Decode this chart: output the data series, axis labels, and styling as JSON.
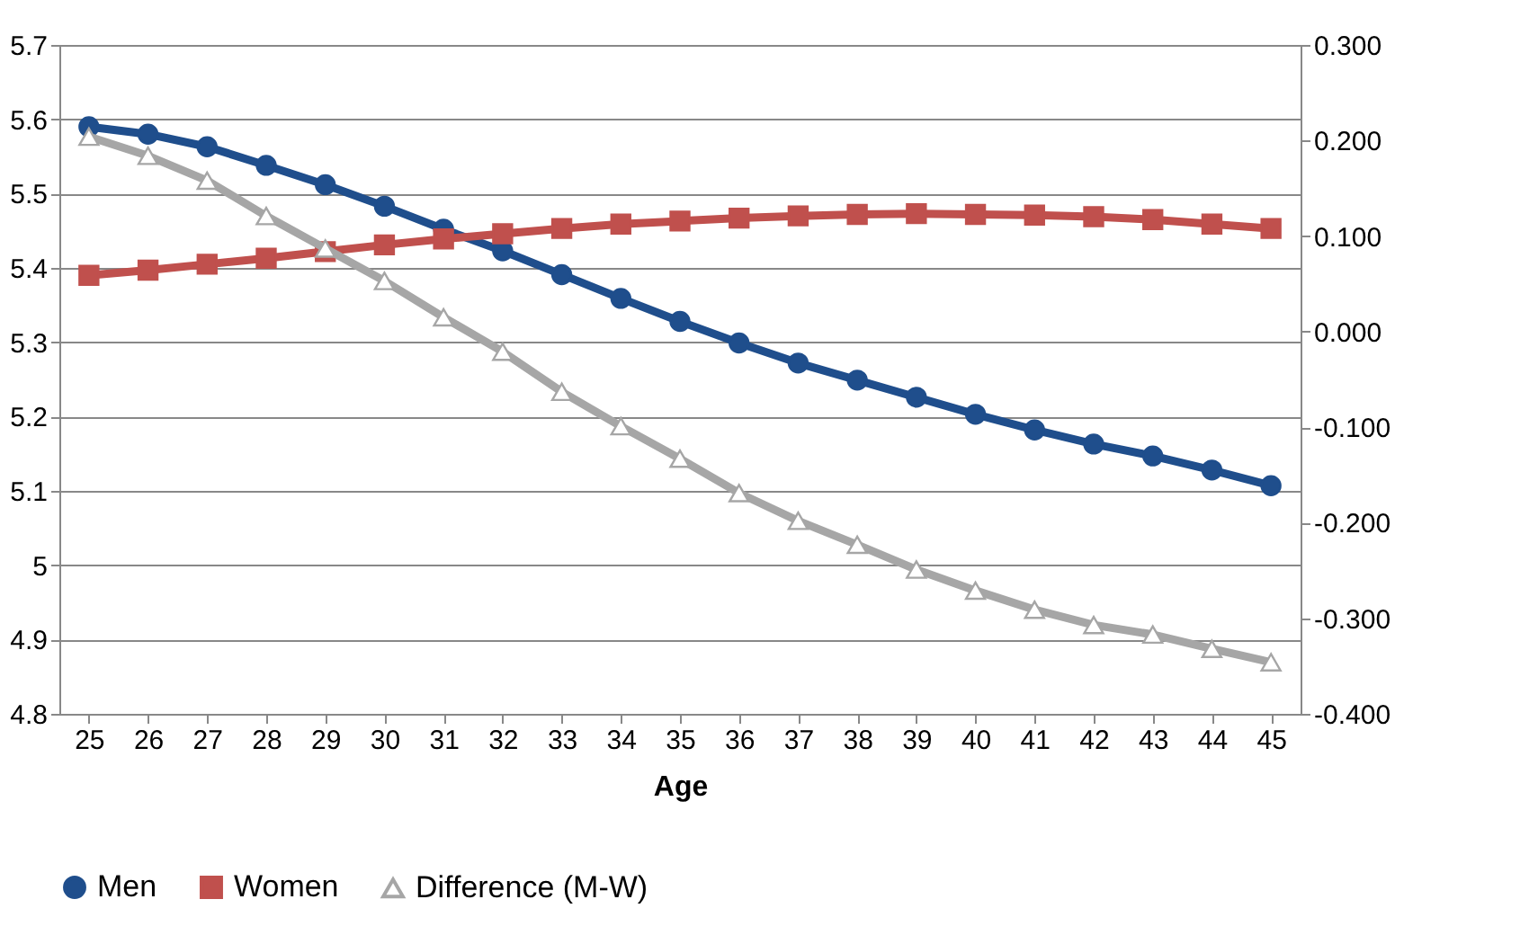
{
  "chart_data": {
    "type": "line",
    "xlabel": "Age",
    "categories": [
      "25",
      "26",
      "27",
      "28",
      "29",
      "30",
      "31",
      "32",
      "33",
      "34",
      "35",
      "36",
      "37",
      "38",
      "39",
      "40",
      "41",
      "42",
      "43",
      "44",
      "45"
    ],
    "series": [
      {
        "name": "Men",
        "color": "#1f4e8c",
        "marker": "circle",
        "values": [
          5.59,
          5.58,
          5.563,
          5.538,
          5.512,
          5.483,
          5.452,
          5.423,
          5.391,
          5.359,
          5.328,
          5.299,
          5.272,
          5.249,
          5.226,
          5.203,
          5.182,
          5.163,
          5.147,
          5.128,
          5.107
        ]
      },
      {
        "name": "Women",
        "color": "#c0504d",
        "marker": "square",
        "values": [
          5.39,
          5.397,
          5.405,
          5.413,
          5.422,
          5.431,
          5.439,
          5.446,
          5.453,
          5.459,
          5.463,
          5.467,
          5.47,
          5.472,
          5.473,
          5.472,
          5.471,
          5.469,
          5.465,
          5.459,
          5.453
        ]
      },
      {
        "name": "Difference (M-W)",
        "color": "#a6a6a6",
        "marker": "triangle",
        "axis": "y2",
        "values": [
          0.204,
          0.184,
          0.158,
          0.121,
          0.087,
          0.053,
          0.015,
          -0.021,
          -0.063,
          -0.099,
          -0.133,
          -0.169,
          -0.198,
          -0.223,
          -0.249,
          -0.271,
          -0.291,
          -0.307,
          -0.317,
          -0.332,
          -0.346
        ]
      }
    ],
    "ylim": [
      4.8,
      5.7
    ],
    "yticks": [
      4.8,
      4.9,
      5,
      5.1,
      5.2,
      5.3,
      5.4,
      5.5,
      5.6,
      5.7
    ],
    "y2lim": [
      -0.4,
      0.3
    ],
    "y2ticks": [
      {
        "value": -0.4,
        "label": "-0.400"
      },
      {
        "value": -0.3,
        "label": "-0.300"
      },
      {
        "value": -0.2,
        "label": "-0.200"
      },
      {
        "value": -0.1,
        "label": "-0.100"
      },
      {
        "value": 0,
        "label": "0.000"
      },
      {
        "value": 0.1,
        "label": "0.100"
      },
      {
        "value": 0.2,
        "label": "0.200"
      },
      {
        "value": 0.3,
        "label": "0.300"
      }
    ],
    "grid": "y",
    "legend": "bottom"
  }
}
